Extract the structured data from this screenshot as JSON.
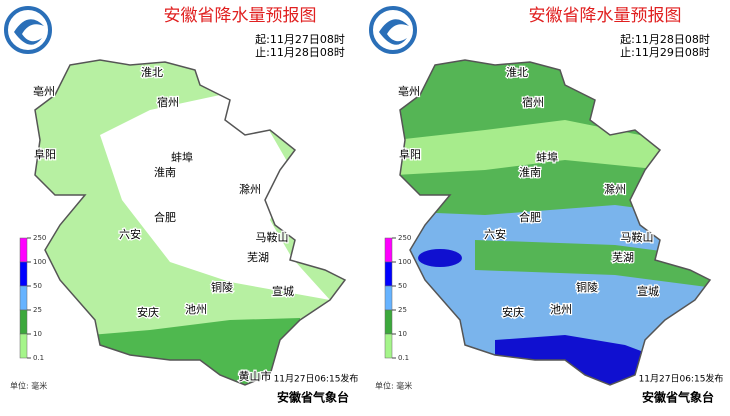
{
  "panels": [
    {
      "title": "安徽省降水量预报图",
      "start": "起:11月27日08时",
      "end": "止:11月28日08时",
      "cities": [
        "淮北",
        "亳州",
        "宿州",
        "阜阳",
        "蚌埠",
        "淮南",
        "滁州",
        "合肥",
        "六安",
        "马鞍山",
        "芜湖",
        "铜陵",
        "宣城",
        "安庆",
        "池州",
        "黄山市"
      ],
      "legend": {
        "ticks": [
          250,
          100,
          50,
          25,
          10,
          0.1
        ],
        "colors": [
          "#ff00ff",
          "#0000ff",
          "#66b3ff",
          "#3ca83c",
          "#a5f58a"
        ]
      },
      "unit": "单位: 毫米",
      "issued": "11月27日06:15发布",
      "agency": "安徽省气象台"
    },
    {
      "title": "安徽省降水量预报图",
      "start": "起:11月28日08时",
      "end": "止:11月29日08时",
      "cities": [
        "淮北",
        "亳州",
        "宿州",
        "阜阳",
        "蚌埠",
        "淮南",
        "滁州",
        "合肥",
        "六安",
        "马鞍山",
        "芜湖",
        "铜陵",
        "宣城",
        "安庆",
        "池州"
      ],
      "legend": {
        "ticks": [
          250,
          100,
          50,
          25,
          10,
          0.1
        ],
        "colors": [
          "#ff00ff",
          "#0000ff",
          "#66b3ff",
          "#3ca83c",
          "#a5f58a"
        ]
      },
      "unit": "单位: 毫米",
      "issued": "11月27日06:15发布",
      "agency": "安徽省气象台"
    }
  ]
}
